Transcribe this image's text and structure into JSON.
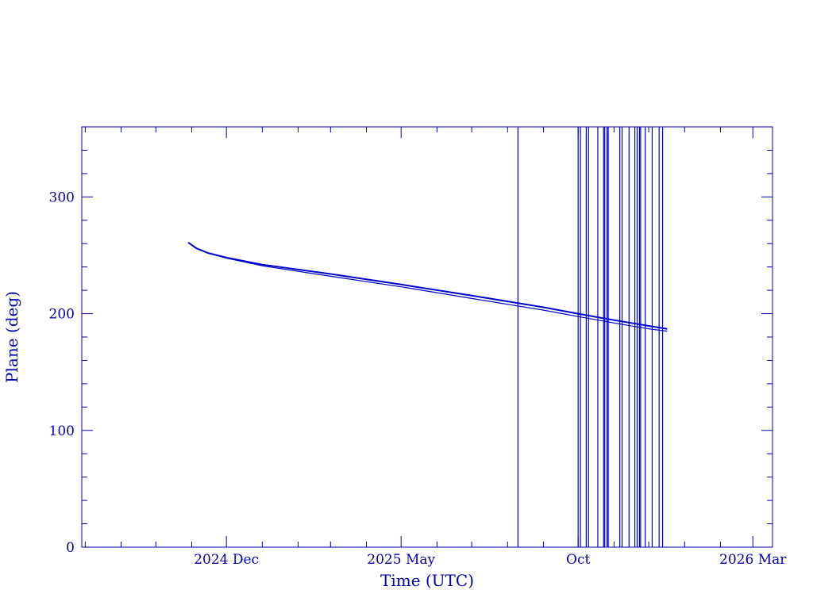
{
  "chart_data": {
    "type": "line",
    "title": "",
    "xlabel": "Time (UTC)",
    "ylabel": "Plane (deg)",
    "xlim": [
      "2024-07-29",
      "2026-03-18"
    ],
    "ylim": [
      0,
      360
    ],
    "x_tick_labels": [
      {
        "date": "2024-12-01",
        "label": "2024 Dec"
      },
      {
        "date": "2025-05-01",
        "label": "2025 May"
      },
      {
        "date": "2025-10-01",
        "label": "Oct"
      },
      {
        "date": "2026-03-01",
        "label": "2026 Mar"
      }
    ],
    "y_ticks": [
      0,
      100,
      200,
      300
    ],
    "y_tick_labels": [
      "0",
      "100",
      "200",
      "300"
    ],
    "grid": false,
    "color": "#0000cc",
    "series": [
      {
        "points": [
          [
            "2024-10-29",
            261
          ],
          [
            "2024-11-05",
            256
          ],
          [
            "2024-11-15",
            252
          ],
          [
            "2024-12-01",
            248
          ],
          [
            "2025-01-01",
            242
          ],
          [
            "2025-03-01",
            234
          ],
          [
            "2025-05-01",
            225
          ],
          [
            "2025-07-01",
            215.5
          ],
          [
            "2025-09-01",
            205.5
          ],
          [
            "2025-10-01",
            200
          ],
          [
            "2025-11-01",
            194.5
          ],
          [
            "2025-12-01",
            189.5
          ],
          [
            "2025-12-17",
            187
          ]
        ]
      },
      {
        "points": [
          [
            "2024-10-29",
            261
          ],
          [
            "2024-11-05",
            256
          ],
          [
            "2024-11-15",
            252
          ],
          [
            "2024-12-01",
            247.5
          ],
          [
            "2025-01-01",
            241
          ],
          [
            "2025-03-01",
            232
          ],
          [
            "2025-05-01",
            223
          ],
          [
            "2025-07-01",
            213
          ],
          [
            "2025-09-01",
            203
          ],
          [
            "2025-10-01",
            197.5
          ],
          [
            "2025-11-01",
            192
          ],
          [
            "2025-12-01",
            187
          ],
          [
            "2025-12-17",
            185
          ]
        ]
      }
    ],
    "vertical_lines": [
      "2025-08-10",
      "2025-10-01",
      "2025-10-03",
      "2025-10-08",
      "2025-10-10",
      "2025-10-18",
      "2025-10-23",
      "2025-10-24",
      "2025-10-26",
      "2025-10-27",
      "2025-11-06",
      "2025-11-08",
      "2025-11-14",
      "2025-11-19",
      "2025-11-21",
      "2025-11-23",
      "2025-11-24",
      "2025-11-28",
      "2025-12-04",
      "2025-12-10",
      "2025-12-13"
    ]
  }
}
